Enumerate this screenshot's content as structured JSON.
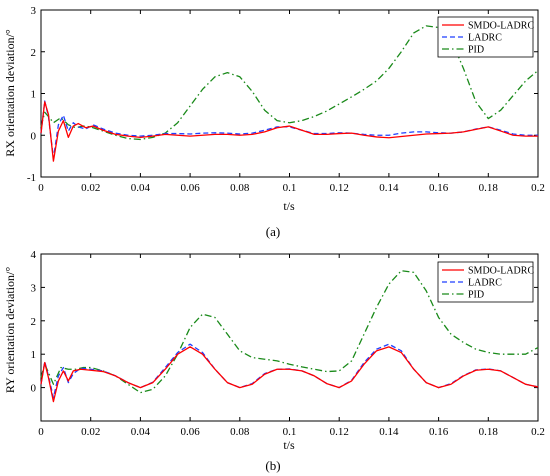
{
  "chart_data": [
    {
      "type": "line",
      "panel_label": "(a)",
      "xlabel": "t/s",
      "ylabel": "RX orientation deviation/°",
      "xlim": [
        0,
        0.2
      ],
      "ylim": [
        -1,
        3
      ],
      "xticks": [
        "0",
        "0.02",
        "0.04",
        "0.06",
        "0.08",
        "0.1",
        "0.12",
        "0.14",
        "0.16",
        "0.18",
        "0.2"
      ],
      "yticks": [
        "-1",
        "0",
        "1",
        "2",
        "3"
      ],
      "legend_position": "top-right",
      "series": [
        {
          "name": "SMDO-LADRC",
          "color": "#ff0000",
          "dash": "solid",
          "x": [
            0,
            0.0015,
            0.003,
            0.005,
            0.007,
            0.009,
            0.011,
            0.013,
            0.015,
            0.018,
            0.021,
            0.025,
            0.03,
            0.035,
            0.04,
            0.045,
            0.05,
            0.055,
            0.06,
            0.065,
            0.07,
            0.075,
            0.08,
            0.085,
            0.09,
            0.095,
            0.1,
            0.105,
            0.11,
            0.115,
            0.12,
            0.125,
            0.13,
            0.135,
            0.14,
            0.145,
            0.15,
            0.155,
            0.16,
            0.165,
            0.17,
            0.175,
            0.18,
            0.185,
            0.19,
            0.195,
            0.2
          ],
          "y": [
            0.05,
            0.8,
            0.5,
            -0.62,
            0.1,
            0.35,
            -0.05,
            0.22,
            0.28,
            0.18,
            0.22,
            0.12,
            0.02,
            -0.02,
            -0.05,
            -0.02,
            0.02,
            0.0,
            -0.02,
            0.0,
            0.02,
            0.02,
            0.0,
            0.02,
            0.08,
            0.18,
            0.22,
            0.12,
            0.02,
            0.02,
            0.04,
            0.05,
            0.0,
            -0.04,
            -0.06,
            -0.03,
            0.0,
            0.03,
            0.04,
            0.05,
            0.08,
            0.14,
            0.2,
            0.1,
            0.0,
            -0.02,
            -0.02
          ]
        },
        {
          "name": "LADRC",
          "color": "#1f3fff",
          "dash": "dashed",
          "x": [
            0,
            0.0015,
            0.003,
            0.005,
            0.007,
            0.009,
            0.011,
            0.013,
            0.015,
            0.018,
            0.021,
            0.025,
            0.03,
            0.035,
            0.04,
            0.045,
            0.05,
            0.055,
            0.06,
            0.065,
            0.07,
            0.075,
            0.08,
            0.085,
            0.09,
            0.095,
            0.1,
            0.105,
            0.11,
            0.115,
            0.12,
            0.125,
            0.13,
            0.135,
            0.14,
            0.145,
            0.15,
            0.155,
            0.16,
            0.165,
            0.17,
            0.175,
            0.18,
            0.185,
            0.19,
            0.195,
            0.2
          ],
          "y": [
            0.05,
            0.82,
            0.45,
            -0.55,
            0.25,
            0.48,
            0.1,
            0.3,
            0.2,
            0.15,
            0.25,
            0.15,
            0.05,
            0.0,
            -0.02,
            0.0,
            0.04,
            0.04,
            0.03,
            0.05,
            0.06,
            0.05,
            0.03,
            0.05,
            0.12,
            0.2,
            0.2,
            0.12,
            0.04,
            0.04,
            0.06,
            0.05,
            0.02,
            0.0,
            0.0,
            0.05,
            0.08,
            0.08,
            0.06,
            0.05,
            0.08,
            0.15,
            0.2,
            0.12,
            0.03,
            0.0,
            0.0
          ]
        },
        {
          "name": "PID",
          "color": "#1a8a1a",
          "dash": "dashdot",
          "x": [
            0,
            0.0015,
            0.003,
            0.005,
            0.008,
            0.011,
            0.014,
            0.017,
            0.02,
            0.025,
            0.03,
            0.035,
            0.04,
            0.045,
            0.05,
            0.055,
            0.06,
            0.065,
            0.07,
            0.075,
            0.08,
            0.085,
            0.09,
            0.095,
            0.1,
            0.105,
            0.11,
            0.115,
            0.12,
            0.125,
            0.13,
            0.135,
            0.14,
            0.145,
            0.15,
            0.155,
            0.16,
            0.165,
            0.17,
            0.175,
            0.18,
            0.185,
            0.19,
            0.195,
            0.2
          ],
          "y": [
            0.2,
            0.55,
            0.45,
            0.3,
            0.42,
            0.25,
            0.18,
            0.22,
            0.2,
            0.1,
            0.0,
            -0.08,
            -0.1,
            -0.05,
            0.05,
            0.3,
            0.7,
            1.1,
            1.4,
            1.5,
            1.4,
            1.05,
            0.6,
            0.35,
            0.3,
            0.35,
            0.45,
            0.58,
            0.75,
            0.92,
            1.1,
            1.3,
            1.6,
            2.0,
            2.45,
            2.62,
            2.58,
            2.3,
            1.6,
            0.8,
            0.4,
            0.6,
            0.95,
            1.3,
            1.55
          ]
        }
      ]
    },
    {
      "type": "line",
      "panel_label": "(b)",
      "xlabel": "t/s",
      "ylabel": "RY orientation deviation/°",
      "xlim": [
        0,
        0.2
      ],
      "ylim": [
        -1,
        4
      ],
      "xticks": [
        "0",
        "0.02",
        "0.04",
        "0.06",
        "0.08",
        "0.1",
        "0.12",
        "0.14",
        "0.16",
        "0.18",
        "0.2"
      ],
      "yticks": [
        "0",
        "1",
        "2",
        "3",
        "4"
      ],
      "legend_position": "top-right",
      "series": [
        {
          "name": "SMDO-LADRC",
          "color": "#ff0000",
          "dash": "solid",
          "x": [
            0,
            0.0015,
            0.003,
            0.005,
            0.007,
            0.009,
            0.011,
            0.013,
            0.016,
            0.02,
            0.025,
            0.03,
            0.035,
            0.04,
            0.045,
            0.05,
            0.055,
            0.06,
            0.065,
            0.07,
            0.075,
            0.08,
            0.085,
            0.09,
            0.095,
            0.1,
            0.105,
            0.11,
            0.115,
            0.12,
            0.125,
            0.13,
            0.135,
            0.14,
            0.145,
            0.15,
            0.155,
            0.16,
            0.165,
            0.17,
            0.175,
            0.18,
            0.185,
            0.19,
            0.195,
            0.2
          ],
          "y": [
            0.1,
            0.75,
            0.3,
            -0.42,
            0.2,
            0.5,
            0.2,
            0.5,
            0.55,
            0.52,
            0.48,
            0.35,
            0.15,
            0.0,
            0.15,
            0.55,
            1.0,
            1.22,
            1.0,
            0.55,
            0.15,
            0.0,
            0.1,
            0.4,
            0.55,
            0.55,
            0.5,
            0.35,
            0.12,
            0.0,
            0.2,
            0.7,
            1.1,
            1.22,
            1.05,
            0.55,
            0.15,
            0.0,
            0.1,
            0.35,
            0.52,
            0.55,
            0.5,
            0.3,
            0.1,
            0.02
          ]
        },
        {
          "name": "LADRC",
          "color": "#1f3fff",
          "dash": "dashed",
          "x": [
            0,
            0.0015,
            0.003,
            0.005,
            0.007,
            0.009,
            0.011,
            0.013,
            0.016,
            0.02,
            0.025,
            0.03,
            0.035,
            0.04,
            0.045,
            0.05,
            0.055,
            0.06,
            0.065,
            0.07,
            0.075,
            0.08,
            0.085,
            0.09,
            0.095,
            0.1,
            0.105,
            0.11,
            0.115,
            0.12,
            0.125,
            0.13,
            0.135,
            0.14,
            0.145,
            0.15,
            0.155,
            0.16,
            0.165,
            0.17,
            0.175,
            0.18,
            0.185,
            0.19,
            0.195,
            0.2
          ],
          "y": [
            0.1,
            0.78,
            0.35,
            -0.3,
            0.35,
            0.6,
            0.15,
            0.42,
            0.58,
            0.55,
            0.5,
            0.35,
            0.15,
            0.0,
            0.16,
            0.6,
            1.05,
            1.3,
            1.05,
            0.55,
            0.15,
            0.0,
            0.12,
            0.42,
            0.55,
            0.56,
            0.5,
            0.35,
            0.12,
            0.0,
            0.22,
            0.75,
            1.15,
            1.3,
            1.1,
            0.55,
            0.15,
            0.0,
            0.12,
            0.36,
            0.53,
            0.56,
            0.5,
            0.3,
            0.1,
            0.02
          ]
        },
        {
          "name": "PID",
          "color": "#1a8a1a",
          "dash": "dashdot",
          "x": [
            0,
            0.0015,
            0.003,
            0.005,
            0.008,
            0.011,
            0.014,
            0.017,
            0.02,
            0.025,
            0.03,
            0.035,
            0.04,
            0.045,
            0.05,
            0.055,
            0.06,
            0.065,
            0.07,
            0.075,
            0.08,
            0.085,
            0.09,
            0.095,
            0.1,
            0.105,
            0.11,
            0.115,
            0.12,
            0.125,
            0.13,
            0.135,
            0.14,
            0.145,
            0.15,
            0.155,
            0.16,
            0.165,
            0.17,
            0.175,
            0.18,
            0.185,
            0.19,
            0.195,
            0.2
          ],
          "y": [
            0.3,
            0.7,
            0.45,
            0.1,
            0.6,
            0.55,
            0.55,
            0.6,
            0.6,
            0.5,
            0.35,
            0.1,
            -0.15,
            -0.05,
            0.35,
            1.0,
            1.8,
            2.2,
            2.1,
            1.6,
            1.1,
            0.9,
            0.85,
            0.8,
            0.7,
            0.62,
            0.55,
            0.48,
            0.5,
            0.8,
            1.6,
            2.4,
            3.1,
            3.5,
            3.45,
            2.9,
            2.1,
            1.6,
            1.35,
            1.15,
            1.05,
            1.0,
            1.0,
            1.0,
            1.2
          ]
        }
      ]
    }
  ]
}
